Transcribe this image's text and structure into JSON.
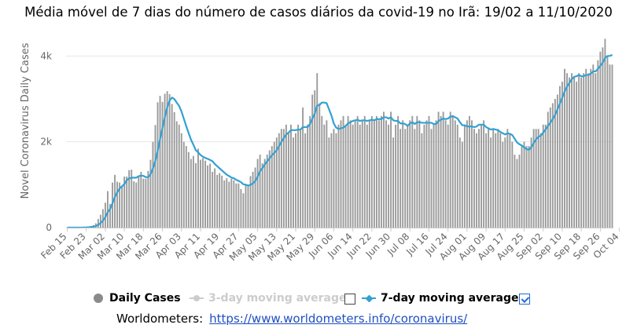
{
  "title": "Média móvel de 7 dias do número de casos diários da covid-19 no Irã: 19/02 a 11/10/2020",
  "legend": {
    "daily": "Daily Cases",
    "ma3": "3-day moving average",
    "ma7": "7-day moving average"
  },
  "source": {
    "label": "Worldometers:",
    "url": "https://www.worldometers.info/coronavirus/"
  },
  "colors": {
    "bars": "#9a9a9a",
    "ma7": "#33a1d2",
    "grid": "#e6e6e6",
    "axis_text": "#666666"
  },
  "chart_data": {
    "type": "bar",
    "ylabel": "Novel Coronavirus Daily Cases",
    "ylim": [
      0,
      4500
    ],
    "yticks": [
      0,
      2000,
      4000
    ],
    "ytick_labels": [
      "0",
      "2k",
      "4k"
    ],
    "start_date": "Feb 15",
    "xtick_labels": [
      "Feb 15",
      "Feb 23",
      "Mar 02",
      "Mar 10",
      "Mar 18",
      "Mar 26",
      "Apr 03",
      "Apr 11",
      "Apr 19",
      "Apr 27",
      "May 05",
      "May 13",
      "May 21",
      "May 29",
      "Jun 06",
      "Jun 14",
      "Jun 22",
      "Jun 30",
      "Jul 08",
      "Jul 16",
      "Jul 24",
      "Aug 01",
      "Aug 09",
      "Aug 17",
      "Aug 25",
      "Sep 02",
      "Sep 10",
      "Sep 18",
      "Sep 26",
      "Oct 04"
    ],
    "daily_cases": [
      0,
      0,
      0,
      0,
      0,
      2,
      3,
      10,
      15,
      25,
      40,
      60,
      100,
      200,
      300,
      430,
      580,
      850,
      550,
      1050,
      1230,
      1070,
      1050,
      950,
      1190,
      1190,
      1340,
      1350,
      1080,
      1050,
      1180,
      1300,
      1140,
      1140,
      1320,
      1580,
      2000,
      2390,
      2920,
      3070,
      2930,
      3120,
      3180,
      3110,
      2880,
      2690,
      2480,
      2400,
      2200,
      2000,
      1900,
      1760,
      1600,
      1670,
      1500,
      1840,
      1580,
      1620,
      1560,
      1450,
      1490,
      1300,
      1380,
      1230,
      1270,
      1210,
      1100,
      1150,
      1070,
      1140,
      1100,
      1030,
      1030,
      900,
      800,
      1000,
      1000,
      1200,
      1300,
      1400,
      1600,
      1700,
      1500,
      1600,
      1700,
      1800,
      1900,
      2000,
      2100,
      2200,
      2300,
      2300,
      2400,
      2200,
      2400,
      2100,
      2200,
      2400,
      2300,
      2800,
      2200,
      2400,
      2600,
      3100,
      3200,
      3600,
      2900,
      2600,
      2400,
      2500,
      2100,
      2200,
      2300,
      2200,
      2400,
      2500,
      2600,
      2400,
      2600,
      2500,
      2400,
      2500,
      2600,
      2400,
      2500,
      2600,
      2400,
      2500,
      2600,
      2500,
      2600,
      2500,
      2600,
      2700,
      2500,
      2400,
      2700,
      2100,
      2400,
      2600,
      2300,
      2500,
      2300,
      2400,
      2500,
      2600,
      2300,
      2600,
      2500,
      2200,
      2400,
      2500,
      2600,
      2300,
      2400,
      2500,
      2700,
      2600,
      2700,
      2500,
      2400,
      2700,
      2600,
      2500,
      2400,
      2100,
      2000,
      2400,
      2500,
      2600,
      2500,
      2300,
      2200,
      2300,
      2400,
      2500,
      2200,
      2300,
      2100,
      2300,
      2200,
      2300,
      2200,
      2000,
      2100,
      2300,
      2200,
      2000,
      1700,
      1600,
      1700,
      1900,
      2000,
      1900,
      1900,
      2100,
      2300,
      2300,
      2300,
      2200,
      2400,
      2400,
      2700,
      2800,
      2900,
      3000,
      3100,
      3300,
      3400,
      3700,
      3600,
      3500,
      3600,
      3500,
      3400,
      3600,
      3500,
      3600,
      3700,
      3600,
      3700,
      3800,
      3600,
      3900,
      4100,
      4200,
      4400,
      4000,
      3800,
      3800
    ]
  }
}
